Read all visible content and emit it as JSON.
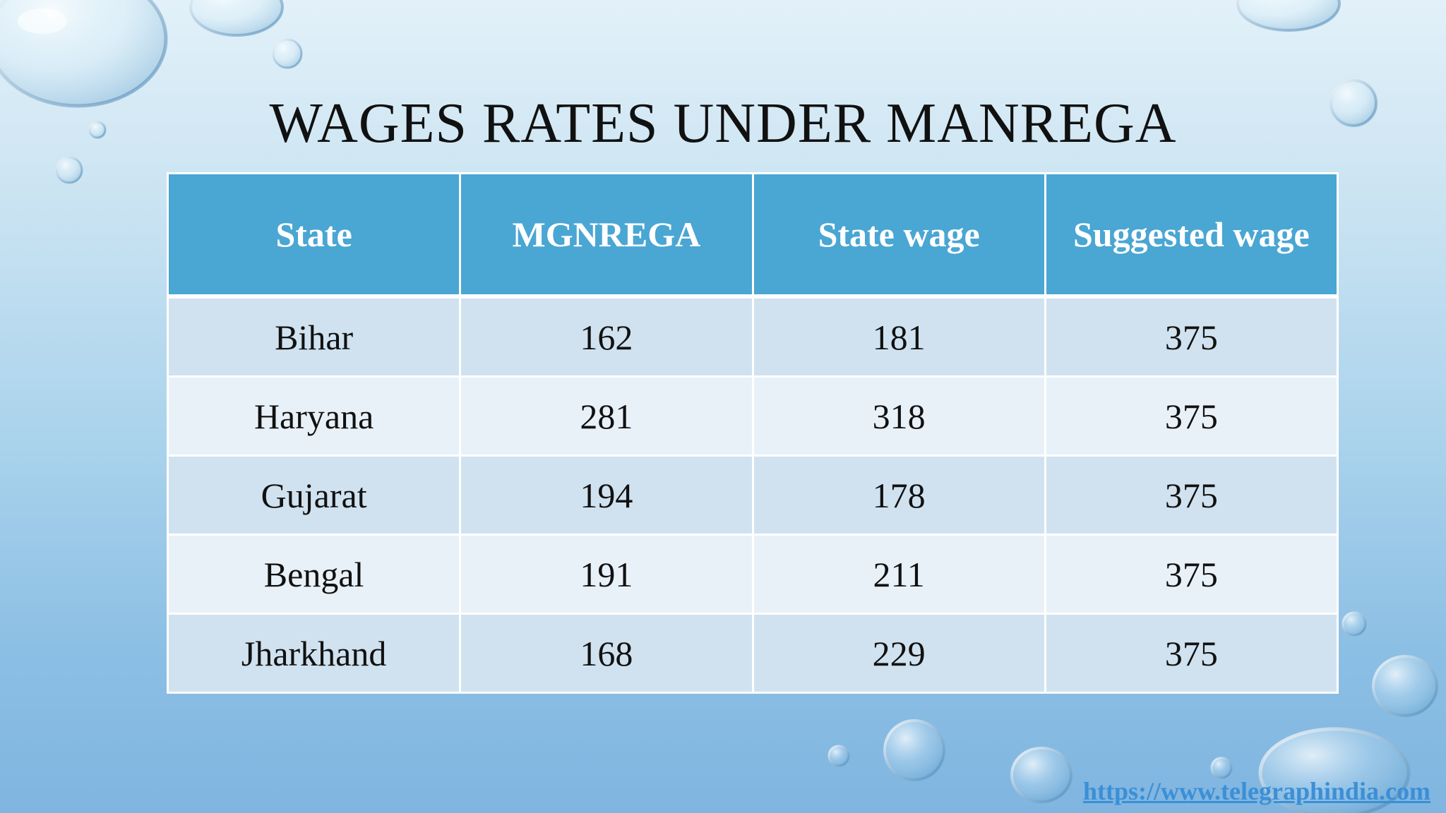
{
  "slide": {
    "title": "WAGES RATES UNDER MANREGA",
    "source_link": "https://www.telegraphindia.com"
  },
  "table": {
    "headers": [
      "State",
      "MGNREGA",
      "State wage",
      "Suggested wage"
    ],
    "rows": [
      [
        "Bihar",
        "162",
        "181",
        "375"
      ],
      [
        "Haryana",
        "281",
        "318",
        "375"
      ],
      [
        "Gujarat",
        "194",
        "178",
        "375"
      ],
      [
        "Bengal",
        "191",
        "211",
        "375"
      ],
      [
        "Jharkhand",
        "168",
        "229",
        "375"
      ]
    ]
  },
  "colors": {
    "header_fill": "#4aa6d3",
    "row_odd_fill": "#d0e2ef",
    "row_even_fill": "#e9f1f8",
    "link": "#3b8fd6",
    "background_top": "#e2f1f9",
    "background_bottom": "#7fb5e0"
  },
  "icons": {
    "background": "water-droplets-decoration"
  }
}
